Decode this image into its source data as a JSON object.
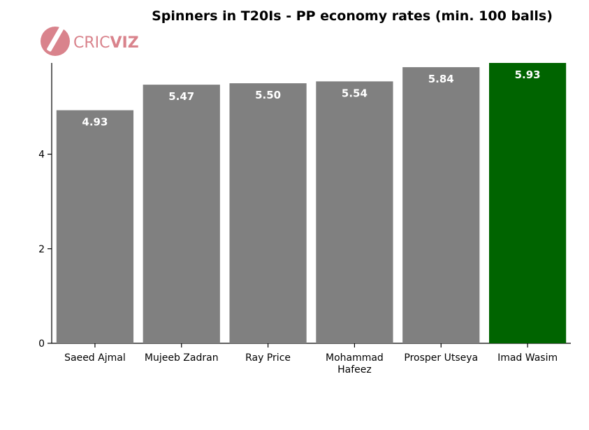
{
  "logo": {
    "text_a": "CRIC",
    "text_b": "VIZ",
    "color": "#d9838c"
  },
  "colors": {
    "default_bar": "#808080",
    "highlight_bar": "#006400"
  },
  "chart_data": {
    "type": "bar",
    "title": "Spinners in T20Is - PP economy rates (min. 100 balls)",
    "xlabel": "",
    "ylabel": "",
    "categories": [
      [
        "Saeed Ajmal"
      ],
      [
        "Mujeeb Zadran"
      ],
      [
        "Ray Price"
      ],
      [
        "Mohammad",
        "Hafeez"
      ],
      [
        "Prosper Utseya"
      ],
      [
        "Imad Wasim"
      ]
    ],
    "values": [
      4.93,
      5.47,
      5.5,
      5.54,
      5.84,
      5.93
    ],
    "value_labels": [
      "4.93",
      "5.47",
      "5.50",
      "5.54",
      "5.84",
      "5.93"
    ],
    "highlight_index": 5,
    "ylim": [
      0,
      5.93
    ],
    "yticks": [
      0,
      2,
      4
    ],
    "grid": false,
    "legend": "none"
  }
}
